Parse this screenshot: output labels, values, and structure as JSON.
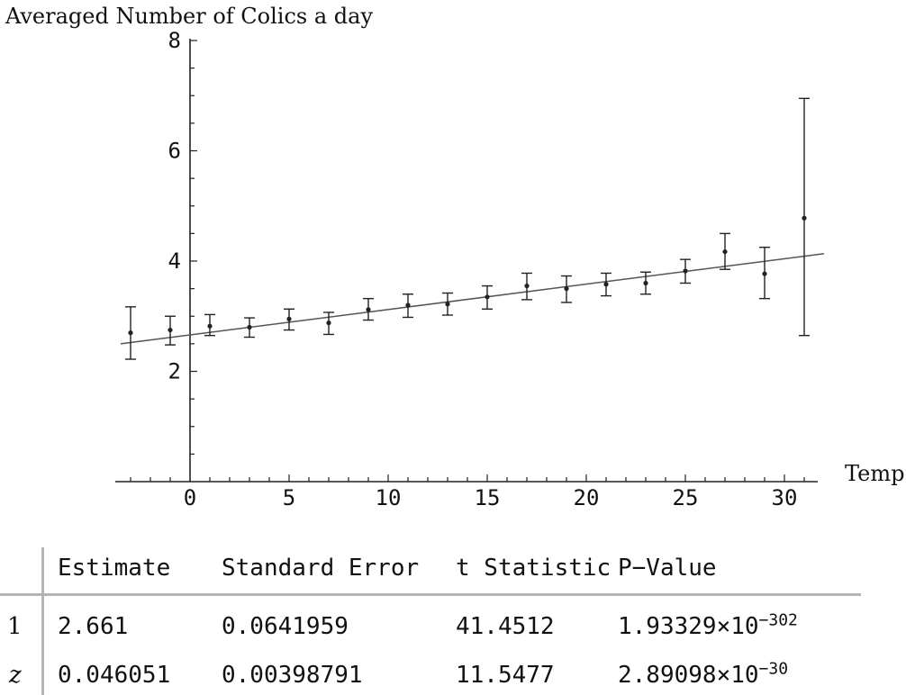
{
  "chart_data": {
    "type": "scatter",
    "ylabel": "Averaged Number of Colics a day",
    "xlabel": "Temp",
    "xlim": [
      -3.5,
      32
    ],
    "ylim": [
      0,
      8
    ],
    "x_ticks": [
      0,
      5,
      10,
      15,
      20,
      25,
      30
    ],
    "y_ticks": [
      2,
      4,
      6,
      8
    ],
    "grid": false,
    "points": [
      {
        "x": -3,
        "y": 2.7,
        "lo": 2.22,
        "hi": 3.17
      },
      {
        "x": -1,
        "y": 2.75,
        "lo": 2.48,
        "hi": 3.0
      },
      {
        "x": 1,
        "y": 2.82,
        "lo": 2.65,
        "hi": 3.03
      },
      {
        "x": 3,
        "y": 2.8,
        "lo": 2.62,
        "hi": 2.97
      },
      {
        "x": 5,
        "y": 2.95,
        "lo": 2.75,
        "hi": 3.13
      },
      {
        "x": 7,
        "y": 2.88,
        "lo": 2.67,
        "hi": 3.07
      },
      {
        "x": 9,
        "y": 3.12,
        "lo": 2.93,
        "hi": 3.32
      },
      {
        "x": 11,
        "y": 3.2,
        "lo": 2.98,
        "hi": 3.4
      },
      {
        "x": 13,
        "y": 3.22,
        "lo": 3.02,
        "hi": 3.42
      },
      {
        "x": 15,
        "y": 3.35,
        "lo": 3.13,
        "hi": 3.55
      },
      {
        "x": 17,
        "y": 3.55,
        "lo": 3.3,
        "hi": 3.78
      },
      {
        "x": 19,
        "y": 3.5,
        "lo": 3.25,
        "hi": 3.73
      },
      {
        "x": 21,
        "y": 3.58,
        "lo": 3.37,
        "hi": 3.78
      },
      {
        "x": 23,
        "y": 3.6,
        "lo": 3.4,
        "hi": 3.8
      },
      {
        "x": 25,
        "y": 3.82,
        "lo": 3.6,
        "hi": 4.03
      },
      {
        "x": 27,
        "y": 4.17,
        "lo": 3.85,
        "hi": 4.5
      },
      {
        "x": 29,
        "y": 3.77,
        "lo": 3.32,
        "hi": 4.25
      },
      {
        "x": 31,
        "y": 4.78,
        "lo": 2.65,
        "hi": 6.95
      }
    ],
    "fit_line": {
      "intercept": 2.661,
      "slope": 0.046051
    }
  },
  "stats_table": {
    "headers": [
      "Estimate",
      "Standard Error",
      "t Statistic",
      "P−Value"
    ],
    "rows": [
      {
        "label": "1",
        "estimate": "2.661",
        "std_error": "0.0641959",
        "t_stat": "41.4512",
        "p_mantissa": "1.93329×10",
        "p_exponent": "−302"
      },
      {
        "label": "z",
        "estimate": "0.046051",
        "std_error": "0.00398791",
        "t_stat": "11.5477",
        "p_mantissa": "2.89098×10",
        "p_exponent": "−30"
      }
    ]
  }
}
